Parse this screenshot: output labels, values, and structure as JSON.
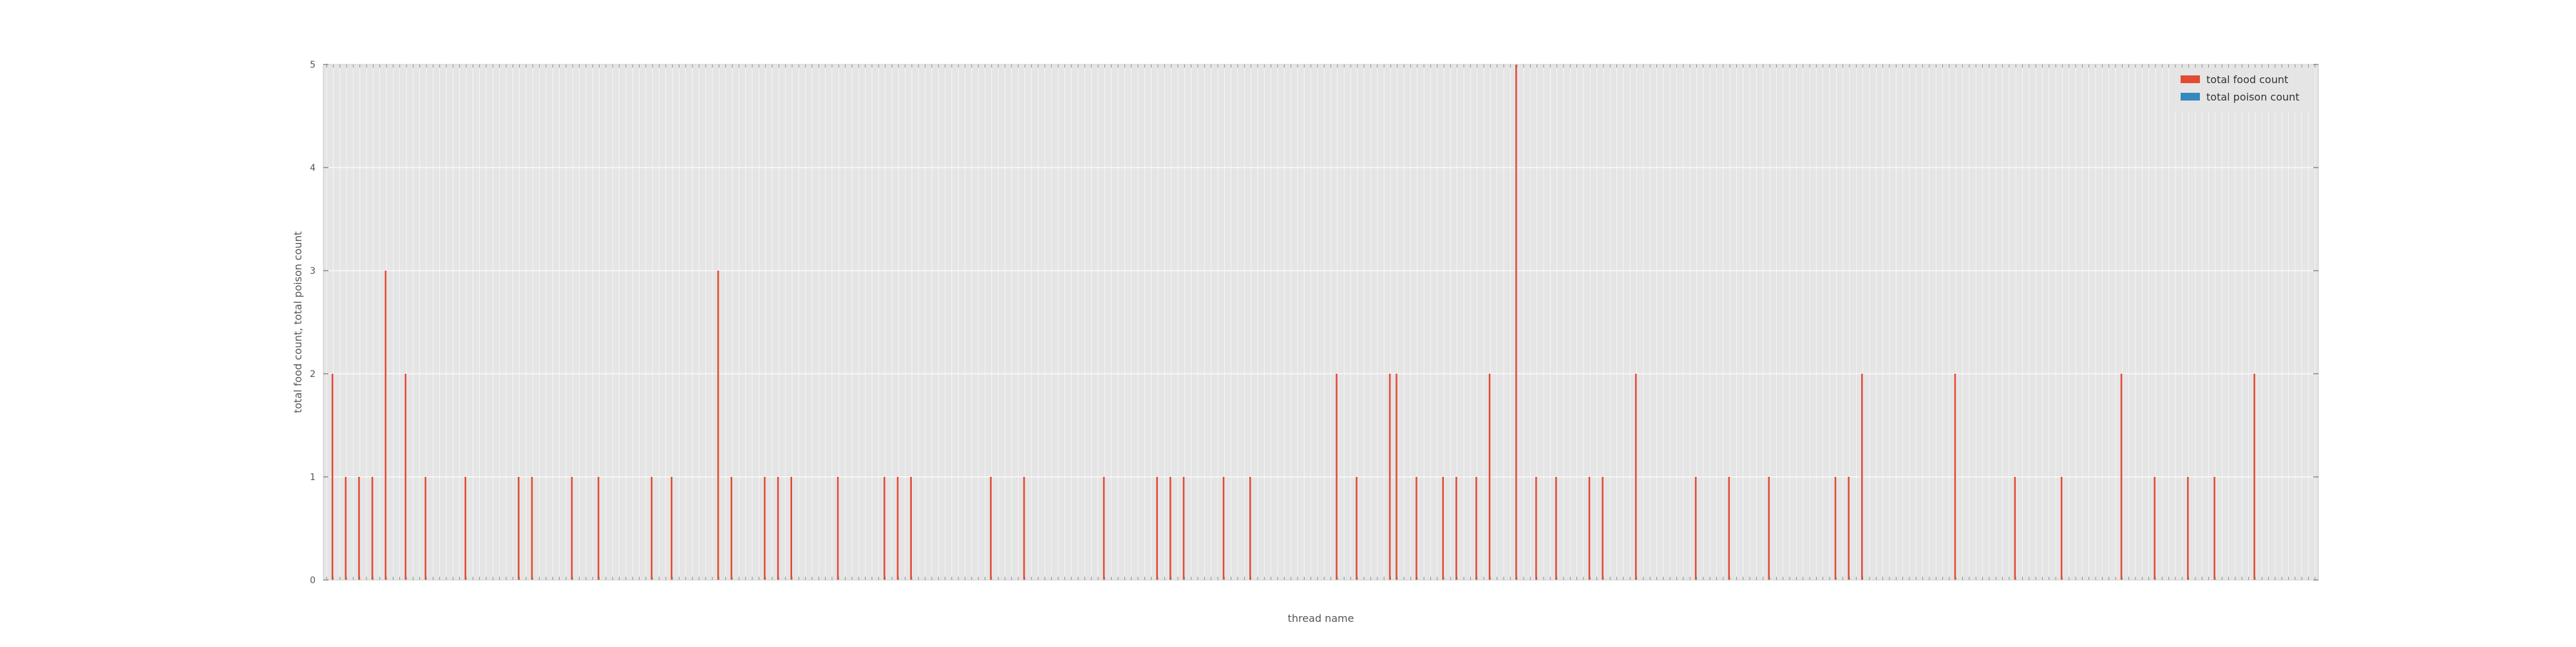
{
  "chart_data": {
    "type": "bar",
    "title": "",
    "xlabel": "thread name",
    "ylabel": "total food count, total poison count",
    "ylim": [
      0,
      5
    ],
    "yticks": [
      0,
      1,
      2,
      3,
      4,
      5
    ],
    "grid": true,
    "legend_position": "top-right",
    "categories_note": "unreadable",
    "num_categories": 300,
    "series": [
      {
        "name": "total food count",
        "color": "#E24A33",
        "values": [
          0,
          2,
          0,
          1,
          0,
          1,
          0,
          1,
          0,
          3,
          0,
          0,
          2,
          0,
          0,
          1,
          0,
          0,
          0,
          0,
          0,
          1,
          0,
          0,
          0,
          0,
          0,
          0,
          0,
          1,
          0,
          1,
          0,
          0,
          0,
          0,
          0,
          1,
          0,
          0,
          0,
          1,
          0,
          0,
          0,
          0,
          0,
          0,
          0,
          1,
          0,
          0,
          1,
          0,
          0,
          0,
          0,
          0,
          0,
          3,
          0,
          1,
          0,
          0,
          0,
          0,
          1,
          0,
          1,
          0,
          1,
          0,
          0,
          0,
          0,
          0,
          0,
          1,
          0,
          0,
          0,
          0,
          0,
          0,
          1,
          0,
          1,
          0,
          1,
          0,
          0,
          0,
          0,
          0,
          0,
          0,
          0,
          0,
          0,
          0,
          1,
          0,
          0,
          0,
          0,
          1,
          0,
          0,
          0,
          0,
          0,
          0,
          0,
          0,
          0,
          0,
          0,
          1,
          0,
          0,
          0,
          0,
          0,
          0,
          0,
          1,
          0,
          1,
          0,
          1,
          0,
          0,
          0,
          0,
          0,
          1,
          0,
          0,
          0,
          1,
          0,
          0,
          0,
          0,
          0,
          0,
          0,
          0,
          0,
          0,
          0,
          0,
          2,
          0,
          0,
          1,
          0,
          0,
          0,
          0,
          2,
          2,
          0,
          0,
          1,
          0,
          0,
          0,
          1,
          0,
          1,
          0,
          0,
          1,
          0,
          2,
          0,
          0,
          0,
          5,
          0,
          0,
          1,
          0,
          0,
          1,
          0,
          0,
          0,
          0,
          1,
          0,
          1,
          0,
          0,
          0,
          0,
          2,
          0,
          0,
          0,
          0,
          0,
          0,
          0,
          0,
          1,
          0,
          0,
          0,
          0,
          1,
          0,
          0,
          0,
          0,
          0,
          1,
          0,
          0,
          0,
          0,
          0,
          0,
          0,
          0,
          0,
          1,
          0,
          1,
          0,
          2,
          0,
          0,
          0,
          0,
          0,
          0,
          0,
          0,
          0,
          0,
          0,
          0,
          0,
          2,
          0,
          0,
          0,
          0,
          0,
          0,
          0,
          0,
          1,
          0,
          0,
          0,
          0,
          0,
          0,
          1,
          0,
          0,
          0,
          0,
          0,
          0,
          0,
          0,
          2,
          0,
          0,
          0,
          0,
          1,
          0,
          0,
          0,
          0,
          1,
          0,
          0,
          0,
          1,
          0,
          0,
          0,
          0,
          0,
          2,
          0,
          0,
          0,
          0,
          0,
          0,
          0,
          0,
          0
        ]
      },
      {
        "name": "total poison count",
        "color": "#348ABD",
        "values": [
          0,
          0,
          0,
          0,
          0,
          0,
          0,
          0,
          0,
          0,
          0,
          0,
          0,
          0,
          0,
          0,
          0,
          0,
          0,
          0,
          0,
          0,
          0,
          0,
          0,
          0,
          0,
          0,
          0,
          0,
          0,
          0,
          0,
          0,
          0,
          0,
          0,
          0,
          0,
          0,
          0,
          0,
          0,
          0,
          0,
          0,
          0,
          0,
          0,
          0,
          0,
          0,
          0,
          0,
          0,
          0,
          0,
          0,
          0,
          0,
          0,
          0,
          0,
          0,
          0,
          0,
          0,
          0,
          0,
          0,
          0,
          0,
          0,
          0,
          0,
          0,
          0,
          0,
          0,
          0,
          0,
          0,
          0,
          0,
          0,
          0,
          0,
          0,
          0,
          0,
          0,
          0,
          0,
          0,
          0,
          0,
          0,
          0,
          0,
          0,
          0,
          0,
          0,
          0,
          0,
          0,
          0,
          0,
          0,
          0,
          0,
          0,
          0,
          0,
          0,
          0,
          0,
          0,
          0,
          0,
          0,
          0,
          0,
          0,
          0,
          0,
          0,
          0,
          0,
          0,
          0,
          0,
          0,
          0,
          0,
          0,
          0,
          0,
          0,
          0,
          0,
          0,
          0,
          0,
          0,
          0,
          0,
          0,
          0,
          0,
          0,
          0,
          0,
          0,
          0,
          0,
          0,
          0,
          0,
          0,
          0,
          0,
          0,
          0,
          0,
          0,
          0,
          0,
          0,
          0,
          0,
          0,
          0,
          0,
          0,
          0,
          0,
          0,
          0,
          0,
          0,
          0,
          0,
          0,
          0,
          0,
          0,
          0,
          0,
          0,
          0,
          0,
          0,
          0,
          0,
          0,
          0,
          0,
          0,
          0,
          0,
          0,
          0,
          0,
          0,
          0,
          0,
          0,
          0,
          0,
          0,
          0,
          0,
          0,
          0,
          0,
          0,
          0,
          0,
          0,
          0,
          0,
          0,
          0,
          0,
          0,
          0,
          0,
          0,
          0,
          0,
          0,
          0,
          0,
          0,
          0,
          0,
          0,
          0,
          0,
          0,
          0,
          0,
          0,
          0,
          0,
          0,
          0,
          0,
          0,
          0,
          0,
          0,
          0,
          0,
          0,
          0,
          0,
          0,
          0,
          0,
          0,
          0,
          0,
          0,
          0,
          0,
          0,
          0,
          0,
          0,
          0,
          0,
          0,
          0,
          0,
          0,
          0,
          0,
          0,
          0,
          0,
          0,
          0,
          0,
          0,
          0,
          0,
          0,
          0,
          0,
          0,
          0,
          0,
          0,
          0,
          0,
          0,
          0,
          0
        ]
      }
    ]
  },
  "colors": {
    "plot_background": "#E5E5E5",
    "grid": "#FFFFFF",
    "text": "#555555"
  }
}
